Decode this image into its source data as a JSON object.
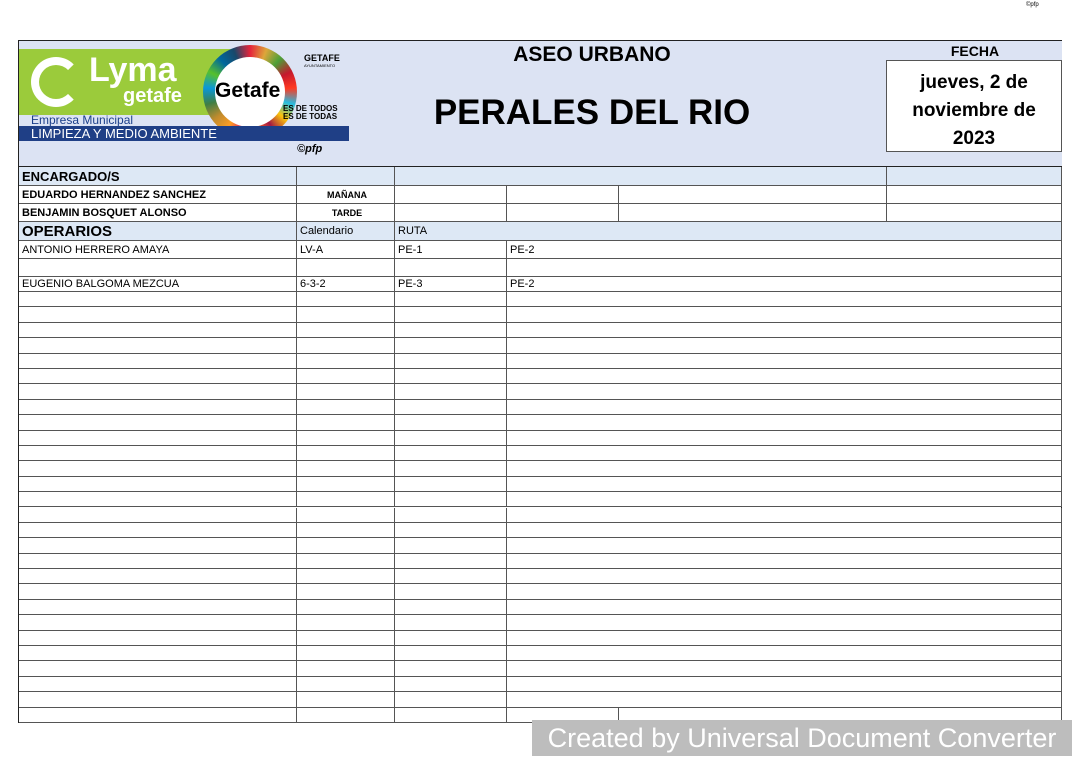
{
  "top_mark": "©pfp",
  "logo": {
    "brand": "Lyma",
    "brand_sub": "getafe",
    "company": "Empresa Municipal",
    "dept": "LIMPIEZA Y MEDIO AMBIENTE",
    "city": "Getafe",
    "city_header": "GETAFE",
    "ayto": "AYUNTAMIENTO",
    "slogan1": "ES DE TODOS",
    "slogan2": "ES DE TODAS",
    "credit": "©pfp"
  },
  "header": {
    "service": "ASEO URBANO",
    "zone": "PERALES DEL RIO",
    "date_label": "FECHA",
    "date": "jueves, 2 de noviembre de 2023"
  },
  "encargados": {
    "label": "ENCARGADO/S",
    "rows": [
      {
        "name": "EDUARDO HERNANDEZ SANCHEZ",
        "shift": "MAÑANA"
      },
      {
        "name": "BENJAMIN BOSQUET ALONSO",
        "shift": "TARDE"
      }
    ]
  },
  "operarios": {
    "label": "OPERARIOS",
    "calendar_label": "Calendario",
    "route_label": "RUTA",
    "rows": [
      {
        "name": "ANTONIO HERRERO AMAYA",
        "calendar": "LV-A",
        "route1": "PE-1",
        "route2": "PE-2"
      },
      {
        "name": "",
        "calendar": "",
        "route1": "",
        "route2": ""
      },
      {
        "name": "EUGENIO BALGOMA MEZCUA",
        "calendar": "6-3-2",
        "route1": "PE-3",
        "route2": "PE-2"
      }
    ]
  },
  "watermark": "Created by Universal Document Converter"
}
